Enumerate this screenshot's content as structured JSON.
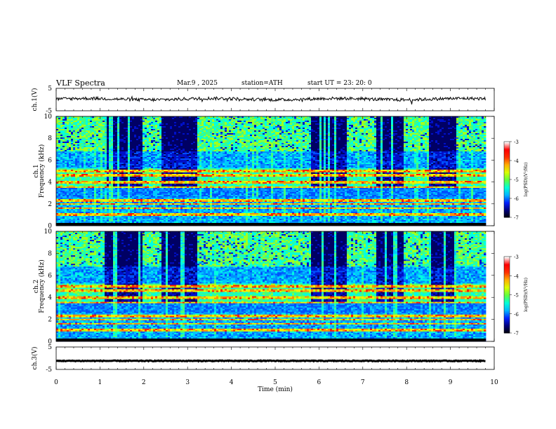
{
  "header": {
    "title": "VLF  Spectra",
    "date": "Mar.9  , 2025",
    "station": "station=ATH",
    "start_ut": "start  UT  =    23: 20: 0"
  },
  "chart_data": [
    {
      "type": "line",
      "panel": "ch1-waveform",
      "ylabel": "ch.1(V)",
      "ylim": [
        -5,
        5
      ],
      "yticks": [
        "5",
        "-5"
      ],
      "xlim": [
        0,
        10
      ],
      "series_color": "#000000",
      "baseline_v": 0.2,
      "description": "noisy waveform with small excursions"
    },
    {
      "type": "heatmap",
      "panel": "ch1-spectrogram",
      "ylabel_top": "ch.1",
      "ylabel": "Frequency  (kHz)",
      "ylim": [
        0,
        10
      ],
      "yticks": [
        "0",
        "2",
        "4",
        "6",
        "8",
        "10"
      ],
      "xlim": [
        0,
        10
      ],
      "quiet_intervals_min": [
        [
          1.1,
          1.95
        ],
        [
          2.4,
          3.2
        ],
        [
          5.8,
          6.6
        ],
        [
          7.3,
          7.9
        ],
        [
          8.5,
          9.1
        ]
      ],
      "narrowband_khz": [
        1.0,
        1.6,
        2.0,
        2.3,
        3.5,
        4.0,
        4.6,
        5.0
      ],
      "colorbar": {
        "label": "log(PSD)(V²/Hz)",
        "min": -7,
        "max": -3,
        "ticks": [
          "-3",
          "-4",
          "-5",
          "-6",
          "-7"
        ]
      }
    },
    {
      "type": "heatmap",
      "panel": "ch2-spectrogram",
      "ylabel_top": "ch.2",
      "ylabel": "Frequency  (kHz)",
      "ylim": [
        0,
        10
      ],
      "yticks": [
        "0",
        "2",
        "4",
        "6",
        "8",
        "10"
      ],
      "xlim": [
        0,
        10
      ],
      "quiet_intervals_min": [
        [
          1.1,
          1.95
        ],
        [
          2.4,
          3.2
        ],
        [
          5.8,
          6.6
        ],
        [
          7.3,
          7.9
        ],
        [
          8.5,
          9.1
        ]
      ],
      "narrowband_khz": [
        1.0,
        1.6,
        2.0,
        2.3,
        3.5,
        4.0,
        4.6,
        5.0
      ],
      "colorbar": {
        "label": "log(PSD)(V²/Hz)",
        "min": -7,
        "max": -3,
        "ticks": [
          "-3",
          "-4",
          "-5",
          "-6",
          "-7"
        ]
      }
    },
    {
      "type": "line",
      "panel": "ch3-waveform",
      "ylabel": "ch.3(V)",
      "ylim": [
        -5,
        5
      ],
      "yticks": [
        "5",
        "-5"
      ],
      "xlim": [
        0,
        10
      ],
      "baseline_v": -1.2,
      "series_color": "#000000"
    }
  ],
  "xaxis": {
    "label": "Time  (min)",
    "ticks": [
      "0",
      "1",
      "2",
      "3",
      "4",
      "5",
      "6",
      "7",
      "8",
      "9",
      "10"
    ]
  },
  "colormap": [
    "#000000",
    "#00007a",
    "#0020ff",
    "#00b4ff",
    "#00ffd8",
    "#60ff40",
    "#d8ff00",
    "#ffb000",
    "#ff3000",
    "#ff0000",
    "#ffffff"
  ]
}
